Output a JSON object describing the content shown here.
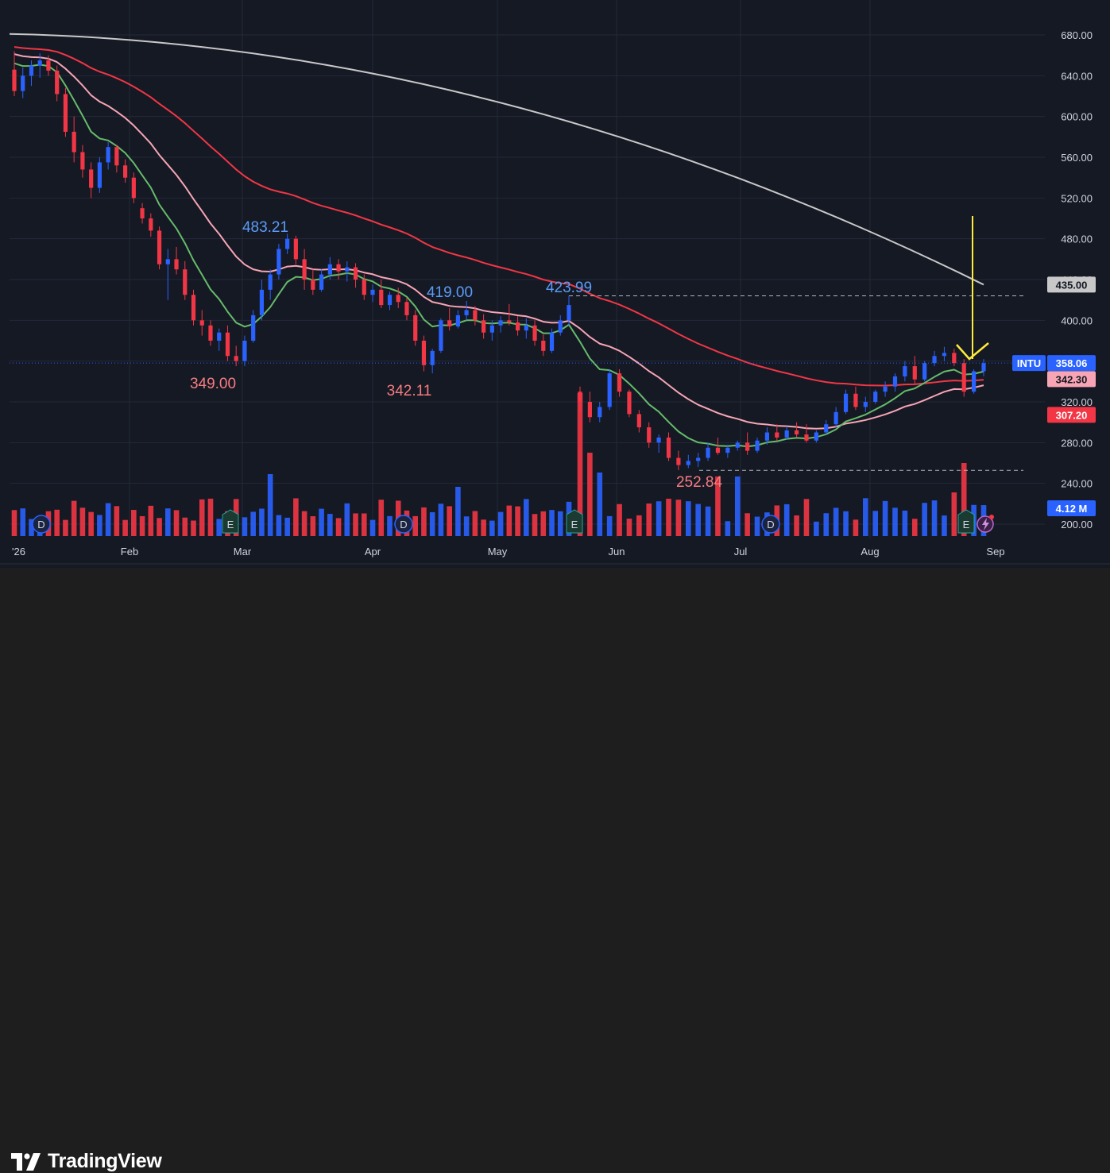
{
  "brand": {
    "name": "TradingView"
  },
  "colors": {
    "background": "#151924",
    "grid": "#242938",
    "up": "#2962ff",
    "down": "#f23645",
    "ma_gray": "#c8c8c8",
    "ma_red": "#f23645",
    "ma_pink": "#f7a5b5",
    "ma_green": "#66bb6a",
    "arrow": "#ffeb3b",
    "label_blue": "#5b9cf6",
    "label_red": "#f77c80"
  },
  "chart_data": {
    "type": "candlestick",
    "symbol": "INTU",
    "y_axis": {
      "ticks": [
        "680.00",
        "640.00",
        "600.00",
        "560.00",
        "520.00",
        "480.00",
        "440.00",
        "400.00",
        "360.00",
        "320.00",
        "280.00",
        "240.00",
        "200.00"
      ],
      "range": [
        190,
        695
      ]
    },
    "x_axis": {
      "labels": [
        "'26",
        "Feb",
        "Mar",
        "Apr",
        "May",
        "Jun",
        "Jul",
        "Aug",
        "Sep"
      ]
    },
    "price_badges": [
      {
        "label": "INTU",
        "value": "358.06",
        "color": "#2962ff",
        "price": 358.06
      },
      {
        "label": "",
        "value": "435.00",
        "color": "#c8c8c8",
        "price": 435
      },
      {
        "label": "",
        "value": "342.30",
        "color": "#f7a5b5",
        "price": 342.3
      },
      {
        "label": "",
        "value": "307.20",
        "color": "#f23645",
        "price": 307.2
      }
    ],
    "volume_badge": "4.12 M",
    "annotations": [
      {
        "text": "483.21",
        "color": "#5b9cf6"
      },
      {
        "text": "349.00",
        "color": "#f77c80"
      },
      {
        "text": "419.00",
        "color": "#5b9cf6"
      },
      {
        "text": "342.11",
        "color": "#f77c80"
      },
      {
        "text": "423.99",
        "color": "#5b9cf6"
      },
      {
        "text": "252.84",
        "color": "#f77c80"
      }
    ],
    "event_markers": [
      {
        "letter": "D",
        "kind": "dividend"
      },
      {
        "letter": "E",
        "kind": "earnings"
      },
      {
        "letter": "D",
        "kind": "dividend"
      },
      {
        "letter": "E",
        "kind": "earnings"
      },
      {
        "letter": "D",
        "kind": "dividend"
      },
      {
        "letter": "E",
        "kind": "earnings"
      }
    ],
    "reference_lines": [
      423.99,
      252.84,
      358.06
    ],
    "candles_approx": [
      [
        646,
        664,
        620,
        625
      ],
      [
        625,
        648,
        618,
        640
      ],
      [
        640,
        655,
        630,
        650
      ],
      [
        650,
        662,
        638,
        655
      ],
      [
        655,
        660,
        640,
        645
      ],
      [
        645,
        650,
        615,
        622
      ],
      [
        622,
        628,
        580,
        585
      ],
      [
        585,
        600,
        555,
        565
      ],
      [
        565,
        572,
        540,
        548
      ],
      [
        548,
        555,
        520,
        530
      ],
      [
        530,
        560,
        525,
        555
      ],
      [
        555,
        575,
        548,
        570
      ],
      [
        570,
        572,
        545,
        552
      ],
      [
        552,
        558,
        535,
        540
      ],
      [
        540,
        545,
        515,
        520
      ],
      [
        510,
        515,
        495,
        500
      ],
      [
        500,
        505,
        482,
        488
      ],
      [
        488,
        492,
        450,
        455
      ],
      [
        455,
        470,
        420,
        460
      ],
      [
        460,
        472,
        445,
        450
      ],
      [
        450,
        458,
        420,
        425
      ],
      [
        425,
        430,
        395,
        400
      ],
      [
        400,
        410,
        385,
        395
      ],
      [
        395,
        400,
        375,
        380
      ],
      [
        380,
        392,
        370,
        388
      ],
      [
        388,
        395,
        360,
        365
      ],
      [
        365,
        375,
        355,
        360
      ],
      [
        360,
        385,
        355,
        380
      ],
      [
        380,
        410,
        378,
        405
      ],
      [
        405,
        440,
        400,
        430
      ],
      [
        430,
        450,
        420,
        445
      ],
      [
        445,
        475,
        440,
        470
      ],
      [
        470,
        485,
        465,
        480
      ],
      [
        480,
        483,
        455,
        460
      ],
      [
        460,
        470,
        430,
        440
      ],
      [
        440,
        450,
        425,
        430
      ],
      [
        430,
        450,
        428,
        445
      ],
      [
        445,
        462,
        440,
        455
      ],
      [
        455,
        460,
        440,
        448
      ],
      [
        448,
        458,
        438,
        452
      ],
      [
        452,
        456,
        432,
        440
      ],
      [
        440,
        445,
        420,
        425
      ],
      [
        425,
        435,
        418,
        430
      ],
      [
        430,
        440,
        412,
        415
      ],
      [
        415,
        428,
        410,
        425
      ],
      [
        425,
        432,
        412,
        418
      ],
      [
        418,
        422,
        400,
        405
      ],
      [
        405,
        410,
        375,
        380
      ],
      [
        380,
        385,
        350,
        356
      ],
      [
        356,
        372,
        348,
        370
      ],
      [
        370,
        402,
        368,
        400
      ],
      [
        400,
        412,
        390,
        394
      ],
      [
        394,
        410,
        392,
        405
      ],
      [
        405,
        419,
        400,
        410
      ],
      [
        410,
        414,
        395,
        400
      ],
      [
        400,
        406,
        382,
        388
      ],
      [
        388,
        400,
        380,
        395
      ],
      [
        395,
        404,
        388,
        400
      ],
      [
        400,
        416,
        395,
        398
      ],
      [
        398,
        404,
        385,
        390
      ],
      [
        390,
        402,
        382,
        395
      ],
      [
        395,
        400,
        375,
        380
      ],
      [
        380,
        386,
        365,
        370
      ],
      [
        370,
        392,
        368,
        388
      ],
      [
        388,
        405,
        385,
        400
      ],
      [
        400,
        424,
        395,
        415
      ],
      [
        330,
        335,
        310,
        320
      ],
      [
        320,
        330,
        300,
        305
      ],
      [
        305,
        320,
        300,
        315
      ],
      [
        315,
        352,
        312,
        348
      ],
      [
        348,
        352,
        325,
        330
      ],
      [
        330,
        332,
        305,
        308
      ],
      [
        308,
        312,
        290,
        295
      ],
      [
        295,
        300,
        275,
        280
      ],
      [
        280,
        288,
        270,
        285
      ],
      [
        285,
        290,
        262,
        265
      ],
      [
        265,
        272,
        253,
        258
      ],
      [
        258,
        268,
        255,
        262
      ],
      [
        262,
        270,
        256,
        265
      ],
      [
        265,
        280,
        262,
        275
      ],
      [
        275,
        285,
        268,
        270
      ],
      [
        270,
        278,
        265,
        275
      ],
      [
        275,
        282,
        272,
        280
      ],
      [
        280,
        290,
        268,
        272
      ],
      [
        272,
        285,
        270,
        282
      ],
      [
        282,
        295,
        278,
        290
      ],
      [
        290,
        298,
        282,
        285
      ],
      [
        285,
        296,
        283,
        292
      ],
      [
        292,
        300,
        285,
        288
      ],
      [
        288,
        298,
        280,
        282
      ],
      [
        282,
        292,
        280,
        290
      ],
      [
        290,
        302,
        288,
        298
      ],
      [
        298,
        315,
        295,
        310
      ],
      [
        310,
        332,
        308,
        328
      ],
      [
        328,
        335,
        312,
        315
      ],
      [
        315,
        325,
        310,
        320
      ],
      [
        320,
        332,
        318,
        330
      ],
      [
        330,
        340,
        325,
        335
      ],
      [
        335,
        348,
        330,
        345
      ],
      [
        345,
        360,
        340,
        355
      ],
      [
        355,
        365,
        338,
        342
      ],
      [
        342,
        360,
        340,
        358
      ],
      [
        358,
        370,
        355,
        365
      ],
      [
        365,
        374,
        360,
        368
      ],
      [
        368,
        372,
        355,
        358
      ],
      [
        358,
        362,
        325,
        330
      ],
      [
        330,
        352,
        328,
        350
      ],
      [
        350,
        362,
        345,
        358
      ]
    ]
  }
}
